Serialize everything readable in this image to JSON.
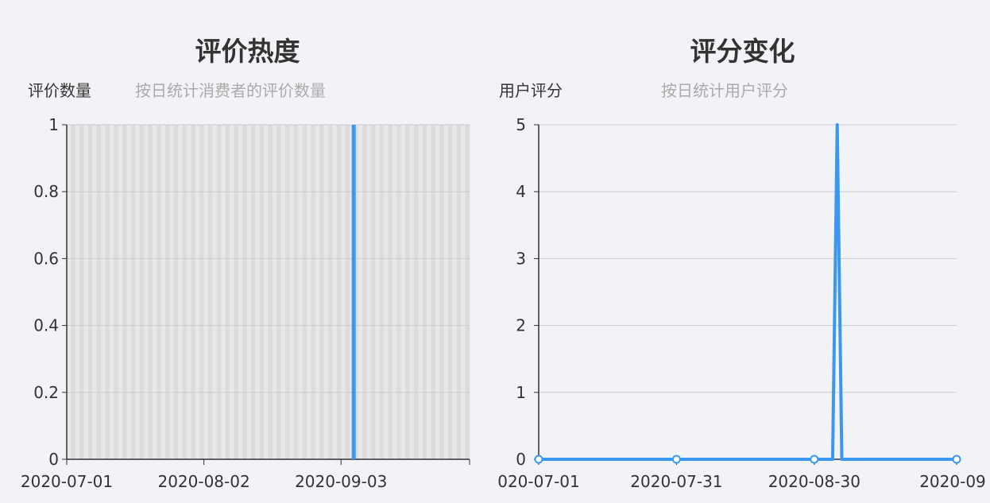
{
  "charts": {
    "left": {
      "title": "评价热度",
      "y_unit": "评价数量",
      "subtitle": "按日统计消费者的评价数量"
    },
    "right": {
      "title": "评分变化",
      "y_unit": "用户评分",
      "subtitle": "按日统计用户评分"
    }
  },
  "colors": {
    "series": "#3a98f0",
    "axis": "#333333",
    "grid": "#cccccc",
    "band_light": "#e8e8e8",
    "band_dark": "#dcdcdc",
    "background": "#f2f3f6"
  },
  "chart_data": [
    {
      "type": "bar",
      "title": "评价热度",
      "subtitle": "按日统计消费者的评价数量",
      "ylabel": "评价数量",
      "ylim": [
        0,
        1
      ],
      "y_ticks": [
        "0",
        "0.2",
        "0.4",
        "0.6",
        "0.8",
        "1"
      ],
      "x_ticks": [
        "2020-07-01",
        "2020-08-02",
        "2020-09-03"
      ],
      "x_range": [
        "2020-07-01",
        "2020-10-03"
      ],
      "grid": true,
      "series": [
        {
          "x": [
            "2020-09-03"
          ],
          "values": [
            1
          ]
        }
      ]
    },
    {
      "type": "line",
      "title": "评分变化",
      "subtitle": "按日统计用户评分",
      "ylabel": "用户评分",
      "ylim": [
        0,
        5
      ],
      "y_ticks": [
        "0",
        "1",
        "2",
        "3",
        "4",
        "5"
      ],
      "x_ticks": [
        "020-07-01",
        "2020-07-31",
        "2020-08-30",
        "2020-09"
      ],
      "x_range": [
        "2020-07-01",
        "2020-09-30"
      ],
      "grid": true,
      "series": [
        {
          "x": [
            "2020-07-01",
            "2020-07-31",
            "2020-08-30",
            "2020-09-03",
            "2020-09-04",
            "2020-09-05",
            "2020-09-30"
          ],
          "values": [
            0,
            0,
            0,
            0,
            5,
            0,
            0
          ],
          "markers": [
            true,
            true,
            true,
            false,
            false,
            false,
            true
          ]
        }
      ]
    }
  ]
}
